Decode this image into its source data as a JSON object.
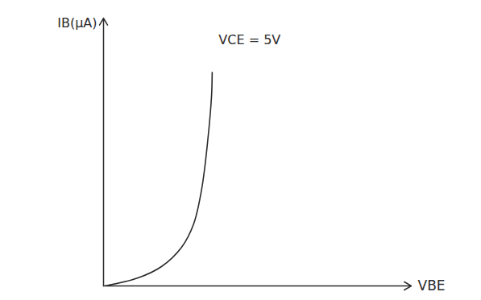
{
  "chart_data": {
    "type": "line",
    "x_label": "VBE",
    "y_label": "IB(μA)",
    "x": [
      0.05,
      1.1,
      1.88,
      2.54,
      2.93,
      3.19,
      3.38,
      3.51,
      3.53
    ],
    "series": [
      {
        "name": "VCE = 5V",
        "color": "#2b2b2b",
        "values": [
          0,
          0.29,
          0.72,
          1.45,
          2.32,
          3.62,
          5.36,
          7.1,
          7.97
        ]
      }
    ],
    "xlim": [
      0,
      10
    ],
    "ylim": [
      0,
      10
    ],
    "xticks": [],
    "yticks": [],
    "tick_labels": false,
    "grid": false
  }
}
